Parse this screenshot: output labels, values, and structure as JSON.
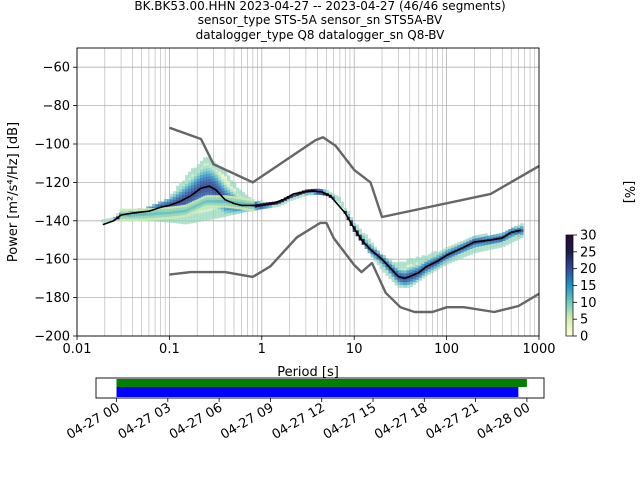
{
  "header": {
    "line1": "BK.BK53.00.HHN   2023-04-27 -- 2023-04-27  (46/46 segments)",
    "line2": "sensor_type STS-5A sensor_sn STS5A-BV",
    "line3": "datalogger_type Q8 datalogger_sn Q8-BV"
  },
  "colors": {
    "median": "#000000",
    "noise_model": "#666666",
    "grid": "#b0b0b0",
    "coverage_data": "#008000",
    "coverage_psd": "#0000ff",
    "colormap": [
      "#ffffd9",
      "#d6efb3",
      "#73c9bd",
      "#2293c0",
      "#2f4d9b",
      "#1c1b45",
      "#2b0a3c"
    ]
  },
  "chart_data": [
    {
      "type": "heatmap",
      "xlabel": "Period [s]",
      "ylabel": "Power [m²/s⁴/Hz] [dB]",
      "xscale": "log",
      "xlim": [
        0.01,
        1000
      ],
      "ylim": [
        -200,
        -50
      ],
      "x_ticks": [
        0.01,
        0.1,
        1,
        10,
        100,
        1000
      ],
      "x_tick_labels": [
        "0.01",
        "0.1",
        "1",
        "10",
        "100",
        "1000"
      ],
      "y_ticks": [
        -200,
        -180,
        -160,
        -140,
        -120,
        -100,
        -80,
        -60
      ],
      "y_tick_labels": [
        "−200",
        "−180",
        "−160",
        "−140",
        "−120",
        "−100",
        "−80",
        "−60"
      ],
      "grid": true,
      "colorbar": {
        "label": "[%]",
        "range": [
          0,
          30
        ],
        "ticks": [
          0,
          5,
          10,
          15,
          20,
          25,
          30
        ],
        "tick_labels": [
          "0",
          "5",
          "10",
          "15",
          "20",
          "25",
          "30"
        ]
      },
      "median_psd": {
        "period": [
          0.019,
          0.025,
          0.03,
          0.04,
          0.06,
          0.08,
          0.1,
          0.13,
          0.17,
          0.22,
          0.27,
          0.32,
          0.4,
          0.5,
          0.6,
          0.8,
          1.0,
          1.3,
          1.7,
          2.2,
          2.8,
          3.5,
          4.5,
          5.5,
          6.5,
          8,
          10,
          12,
          15,
          20,
          25,
          30,
          35,
          40,
          50,
          60,
          80,
          100,
          150,
          200,
          300,
          400,
          500,
          630
        ],
        "power": [
          -142,
          -140,
          -137,
          -136,
          -135,
          -133,
          -132,
          -130,
          -127,
          -123,
          -122,
          -124,
          -129,
          -131,
          -132,
          -132,
          -132,
          -131,
          -129,
          -126,
          -125,
          -124.5,
          -125,
          -127,
          -131,
          -136,
          -144,
          -150,
          -155,
          -160,
          -165,
          -169,
          -170,
          -169,
          -167,
          -164,
          -161,
          -158,
          -154,
          -151,
          -150,
          -149,
          -146,
          -145
        ]
      },
      "noise_model_high": {
        "period": [
          0.1,
          0.22,
          0.3,
          0.8,
          3.8,
          4.6,
          6.3,
          10,
          15,
          20,
          300,
          1000
        ],
        "power": [
          -91.5,
          -97.4,
          -110.5,
          -120,
          -98,
          -96.5,
          -101,
          -113.5,
          -120,
          -138,
          -126,
          -111.5
        ]
      },
      "noise_model_low": {
        "period": [
          0.1,
          0.17,
          0.4,
          0.8,
          1.24,
          2.4,
          4.3,
          5.0,
          6.0,
          10,
          12,
          15.6,
          21.9,
          31.6,
          45,
          70,
          101,
          154,
          328,
          600,
          1000
        ],
        "power": [
          -168,
          -166.7,
          -166.7,
          -169.2,
          -163.7,
          -148.6,
          -141.1,
          -141.1,
          -149,
          -163,
          -166.7,
          -162,
          -177.5,
          -185,
          -187.5,
          -187.5,
          -185,
          -185,
          -187.5,
          -184.4,
          -178
        ]
      },
      "psd_band_low": {
        "period": [
          0.019,
          0.03,
          0.05,
          0.1,
          0.15,
          0.25,
          0.4,
          0.6,
          0.8,
          1.0,
          1.5,
          2,
          3,
          4,
          5,
          7,
          10,
          15,
          20,
          30,
          40,
          60,
          100,
          200,
          400,
          650
        ],
        "power": [
          -140,
          -138,
          -139,
          -140,
          -141,
          -139,
          -137,
          -135,
          -134,
          -133,
          -132,
          -129,
          -126,
          -125.5,
          -126,
          -130,
          -145,
          -157,
          -165,
          -174,
          -174,
          -168,
          -162,
          -156,
          -153,
          -148
        ]
      },
      "psd_band_high": {
        "period": [
          0.019,
          0.03,
          0.05,
          0.1,
          0.15,
          0.25,
          0.4,
          0.6,
          0.8,
          1.0,
          1.5,
          2,
          3,
          4,
          5,
          7,
          10,
          15,
          20,
          30,
          40,
          60,
          100,
          200,
          400,
          650
        ],
        "power": [
          -140,
          -136,
          -134,
          -128,
          -117,
          -106,
          -114,
          -125,
          -129,
          -130,
          -130,
          -127,
          -124,
          -123.5,
          -124,
          -128,
          -141,
          -150,
          -158,
          -162,
          -160,
          -158,
          -154,
          -148,
          -146,
          -142
        ]
      },
      "psd_secondary_branch": {
        "period": [
          0.03,
          0.05,
          0.1,
          0.15,
          0.25,
          0.4,
          0.6,
          0.8
        ],
        "power": [
          -137,
          -137,
          -136,
          -135,
          -130,
          -130,
          -131,
          -132
        ]
      }
    },
    {
      "type": "timeline",
      "x_tick_labels": [
        "04-27 00",
        "04-27 03",
        "04-27 06",
        "04-27 09",
        "04-27 12",
        "04-27 15",
        "04-27 18",
        "04-27 21",
        "04-28 00"
      ],
      "x_hours": [
        0,
        3,
        6,
        9,
        12,
        15,
        18,
        21,
        24
      ],
      "xlim_hours": [
        -1.2,
        25.0
      ],
      "coverage_data_hours": [
        0,
        24.0
      ],
      "coverage_psd_hours": [
        0,
        23.5
      ]
    }
  ]
}
